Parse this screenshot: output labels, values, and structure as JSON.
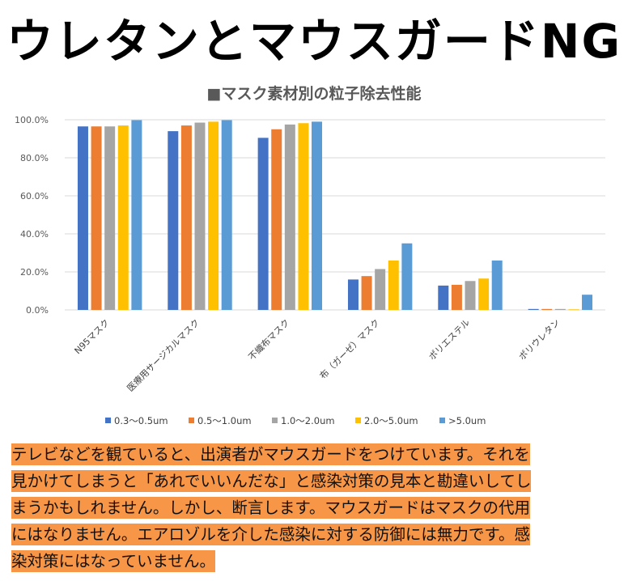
{
  "headline": "ウレタンとマウスガードNG",
  "chart_data": {
    "type": "bar",
    "title": "■マスク素材別の粒子除去性能",
    "categories": [
      "N95マスク",
      "医療用サージカルマスク",
      "不織布マスク",
      "布（ガーゼ）マスク",
      "ポリエステル",
      "ポリウレタン"
    ],
    "series": [
      {
        "name": "0.3～0.5um",
        "color": "#4472c4",
        "values": [
          96.5,
          94.0,
          90.5,
          16.0,
          12.8,
          0.5
        ]
      },
      {
        "name": "0.5～1.0um",
        "color": "#ed7d31",
        "values": [
          96.5,
          97.0,
          95.0,
          17.8,
          13.2,
          0.5
        ]
      },
      {
        "name": "1.0～2.0um",
        "color": "#a5a5a5",
        "values": [
          96.5,
          98.5,
          97.5,
          21.5,
          15.2,
          0.5
        ]
      },
      {
        "name": "2.0～5.0um",
        "color": "#ffc000",
        "values": [
          97.0,
          99.0,
          98.2,
          26.0,
          16.5,
          0.3
        ]
      },
      {
        "name": ">5.0um",
        "color": "#5b9bd5",
        "values": [
          99.8,
          99.8,
          99.0,
          35.0,
          26.0,
          8.0
        ]
      }
    ],
    "yticks": [
      "0.0%",
      "20.0%",
      "40.0%",
      "60.0%",
      "80.0%",
      "100.0%"
    ],
    "ylim": [
      0,
      100
    ],
    "grid": true,
    "legend": "bottom"
  },
  "paragraph": {
    "lines": [
      "テレビなどを観ていると、出演者がマウスガードをつけています。それを",
      "見かけてしまうと「あれでいいんだな」と感染対策の見本と勘違いしてし",
      "まうかもしれません。しかし、断言します。マウスガードはマスクの代用",
      "にはなりません。エアロゾルを介した感染に対する防御には無力です。感",
      "染対策にはなっていません。"
    ]
  },
  "colors": {
    "highlight": "#f79646",
    "gridline": "#d9d9d9",
    "axis_text": "#595959"
  }
}
